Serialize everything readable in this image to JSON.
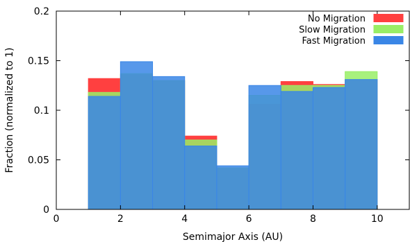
{
  "chart_data": {
    "type": "bar",
    "title": "",
    "xlabel": "Semimajor Axis (AU)",
    "ylabel": "Fraction (normalized to 1)",
    "xlim": [
      0,
      11
    ],
    "ylim": [
      0,
      0.2
    ],
    "x_ticks": [
      0,
      2,
      4,
      6,
      8,
      10
    ],
    "y_ticks": [
      0,
      0.05,
      0.1,
      0.15,
      0.2
    ],
    "y_tick_labels": [
      "0",
      "0.05",
      "0.1",
      "0.15",
      "0.2"
    ],
    "bin_edges": [
      1,
      2,
      3,
      4,
      5,
      6,
      7,
      8,
      9,
      10
    ],
    "legend_position": "top-right",
    "series": [
      {
        "name": "No Migration",
        "color": "#ff4040",
        "values": [
          0.132,
          0.136,
          0.13,
          0.074,
          0.042,
          0.106,
          0.129,
          0.126,
          0.131
        ]
      },
      {
        "name": "Slow Migration",
        "color": "#99ee66",
        "values": [
          0.118,
          0.137,
          0.13,
          0.07,
          0.042,
          0.115,
          0.125,
          0.125,
          0.139
        ]
      },
      {
        "name": "Fast Migration",
        "color": "#3a86e6",
        "values": [
          0.114,
          0.149,
          0.134,
          0.064,
          0.044,
          0.125,
          0.119,
          0.123,
          0.131
        ]
      }
    ]
  }
}
